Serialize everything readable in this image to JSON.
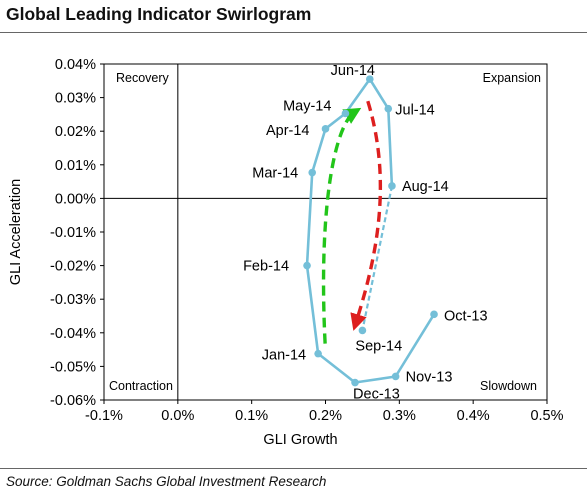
{
  "title": "Global Leading Indicator Swirlogram",
  "source": "Source: Goldman Sachs Global Investment Research",
  "colors": {
    "line": "#74bfd8",
    "up_arrow": "#22c51a",
    "down_arrow": "#dd1f1f",
    "axis": "#000000"
  },
  "chart_data": {
    "type": "line",
    "xlabel": "GLI Growth",
    "ylabel": "GLI Acceleration",
    "xlim": [
      -0.1,
      0.5
    ],
    "ylim": [
      -0.06,
      0.04
    ],
    "xticks": [
      "-0.1%",
      "0.0%",
      "0.1%",
      "0.2%",
      "0.3%",
      "0.4%",
      "0.5%"
    ],
    "yticks": [
      "0.04%",
      "0.03%",
      "0.02%",
      "0.01%",
      "0.00%",
      "-0.01%",
      "-0.02%",
      "-0.03%",
      "-0.04%",
      "-0.05%",
      "-0.06%"
    ],
    "grid": false,
    "quadrants": {
      "top_left": "Recovery",
      "top_right": "Expansion",
      "bottom_left": "Contraction",
      "bottom_right": "Slowdown"
    },
    "points": [
      {
        "label": "Oct-13",
        "x": 0.347,
        "y": -0.0345
      },
      {
        "label": "Nov-13",
        "x": 0.295,
        "y": -0.053
      },
      {
        "label": "Dec-13",
        "x": 0.24,
        "y": -0.0548
      },
      {
        "label": "Jan-14",
        "x": 0.19,
        "y": -0.0462
      },
      {
        "label": "Feb-14",
        "x": 0.175,
        "y": -0.02
      },
      {
        "label": "Mar-14",
        "x": 0.182,
        "y": 0.0077
      },
      {
        "label": "Apr-14",
        "x": 0.2,
        "y": 0.0207
      },
      {
        "label": "May-14",
        "x": 0.227,
        "y": 0.0253
      },
      {
        "label": "Jun-14",
        "x": 0.26,
        "y": 0.0355
      },
      {
        "label": "Jul-14",
        "x": 0.285,
        "y": 0.0267
      },
      {
        "label": "Aug-14",
        "x": 0.29,
        "y": 0.0037
      },
      {
        "label": "Sep-14",
        "x": 0.25,
        "y": -0.0393
      }
    ]
  }
}
